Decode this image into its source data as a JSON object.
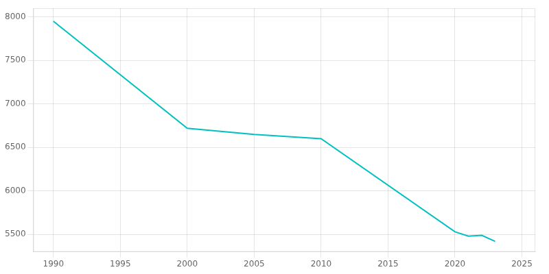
{
  "chart_data": {
    "type": "line",
    "x": [
      1990,
      2000,
      2005,
      2010,
      2020,
      2021,
      2022,
      2023
    ],
    "values": [
      7950,
      6720,
      6650,
      6600,
      5530,
      5480,
      5490,
      5420
    ],
    "color": "#00C0C0",
    "xlim": [
      1988.5,
      2026
    ],
    "ylim": [
      5300,
      8100
    ],
    "xticks": [
      1990,
      1995,
      2000,
      2005,
      2010,
      2015,
      2020,
      2025
    ],
    "yticks": [
      5500,
      6000,
      6500,
      7000,
      7500,
      8000
    ],
    "grid": true
  }
}
